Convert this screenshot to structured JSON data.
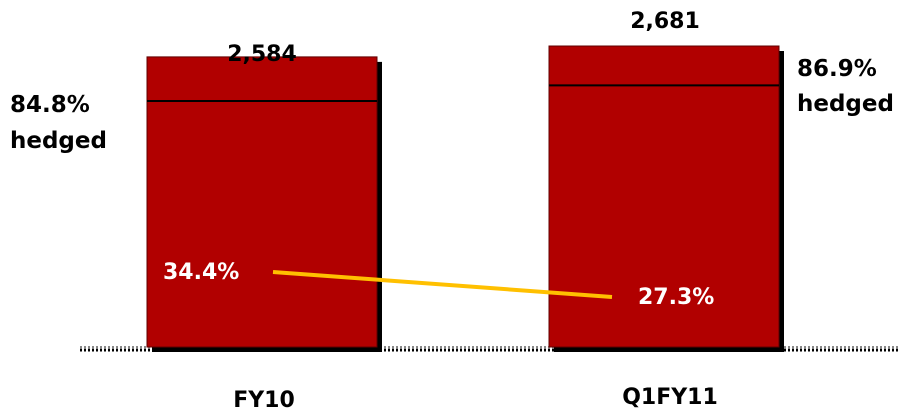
{
  "chart_data": {
    "type": "bar",
    "categories": [
      "FY10",
      "Q1FY11"
    ],
    "values": [
      2584,
      2681
    ],
    "value_labels": [
      "2,584",
      "2,681"
    ],
    "hedged_pct": [
      84.8,
      86.9
    ],
    "hedged_labels": [
      {
        "pct": "84.8%",
        "word": "hedged"
      },
      {
        "pct": "86.9%",
        "word": "hedged"
      }
    ],
    "line_series": {
      "values": [
        34.4,
        27.3
      ],
      "labels": [
        "34.4%",
        "27.3%"
      ]
    },
    "title": "",
    "xlabel": "",
    "ylabel": "",
    "grid": false,
    "legend": "none"
  },
  "colors": {
    "bar_fill": "#b10000",
    "bar_shadow": "#000000",
    "line": "#ffc000",
    "baseline": "#000000"
  }
}
